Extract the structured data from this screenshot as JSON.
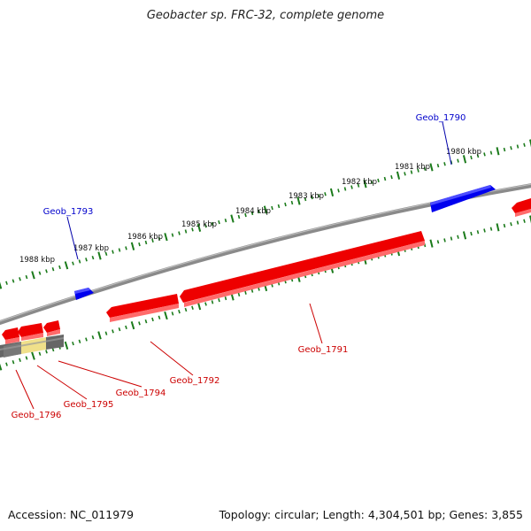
{
  "title": "Geobacter sp. FRC-32, complete genome",
  "footer": {
    "accession": "Accession: NC_011979",
    "summary": "Topology: circular; Length: 4,304,501 bp; Genes: 3,855"
  },
  "colors": {
    "forward_gene": "#0000ee",
    "reverse_gene": "#ee0000",
    "tick": "#1a7a1a",
    "backbone": "#7a7a7a",
    "rna_gene": "#f0e08a",
    "other_feature": "#666666"
  },
  "scale_labels": [
    "1980 kbp",
    "1981 kbp",
    "1982 kbp",
    "1983 kbp",
    "1984 kbp",
    "1985 kbp",
    "1986 kbp",
    "1987 kbp",
    "1988 kbp"
  ],
  "gene_labels": [
    {
      "name": "Geob_1790",
      "strand": "forward"
    },
    {
      "name": "Geob_1791",
      "strand": "reverse"
    },
    {
      "name": "Geob_1792",
      "strand": "reverse"
    },
    {
      "name": "Geob_1793",
      "strand": "forward"
    },
    {
      "name": "Geob_1794",
      "strand": "reverse"
    },
    {
      "name": "Geob_1795",
      "strand": "reverse"
    },
    {
      "name": "Geob_1796",
      "strand": "reverse"
    }
  ]
}
